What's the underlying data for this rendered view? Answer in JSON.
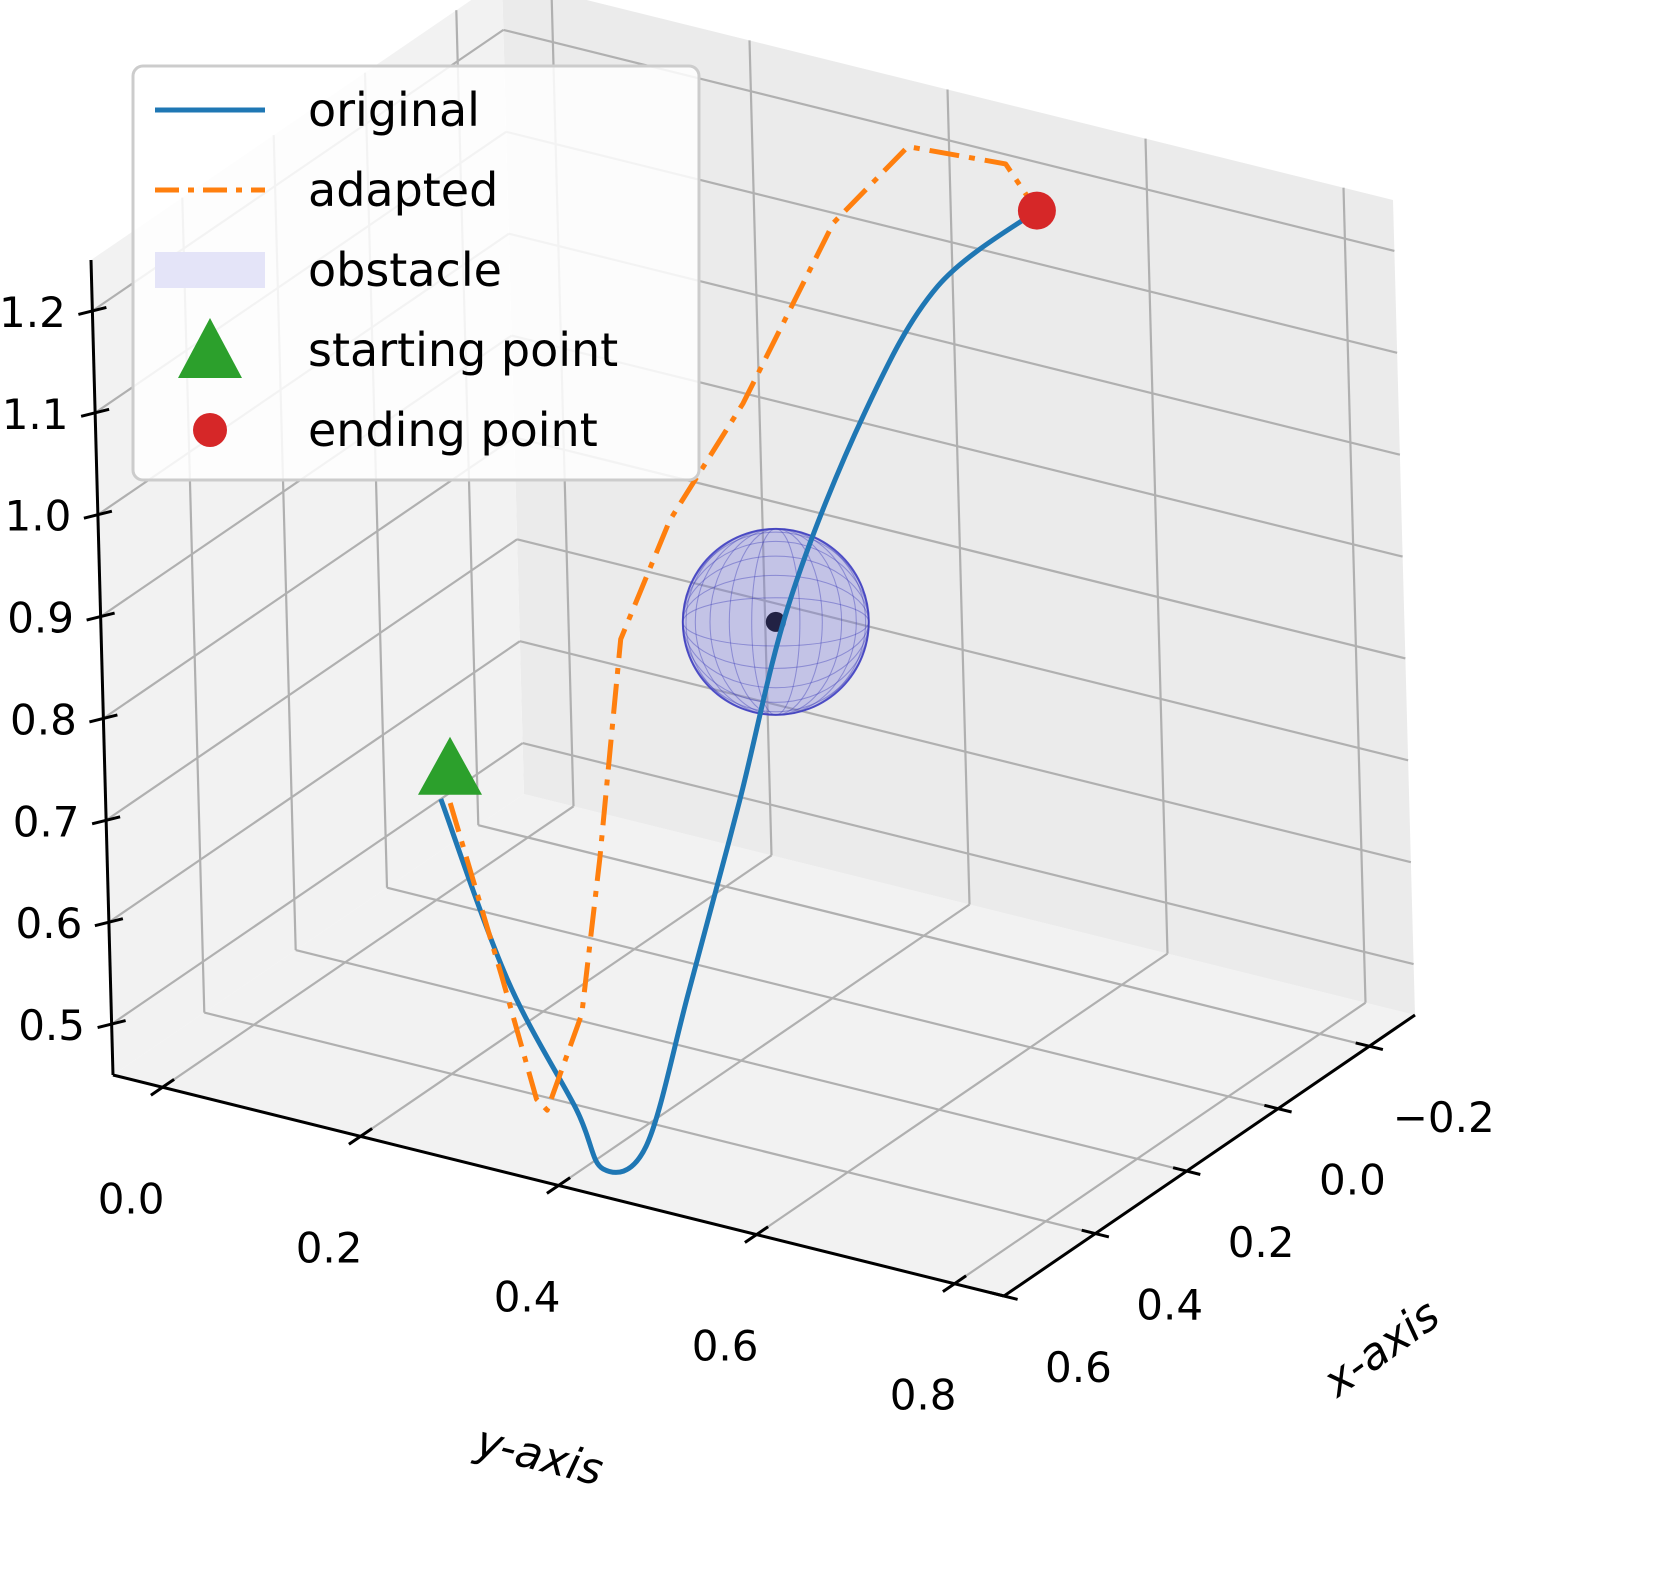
{
  "chart_data": {
    "type": "line",
    "subtype": "3d",
    "title": "",
    "xlabel": "x-axis",
    "ylabel": "y-axis",
    "zlabel": "",
    "xlim": [
      -0.3,
      0.7
    ],
    "ylim": [
      -0.05,
      0.85
    ],
    "zlim": [
      0.45,
      1.25
    ],
    "x_ticks": [
      "−0.2",
      "0.0",
      "0.2",
      "0.4",
      "0.6"
    ],
    "y_ticks": [
      "0.0",
      "0.2",
      "0.4",
      "0.6",
      "0.8"
    ],
    "z_ticks": [
      "0.5",
      "0.6",
      "0.7",
      "0.8",
      "0.9",
      "1.0",
      "1.1",
      "1.2"
    ],
    "grid": true,
    "legend_position": "top-left",
    "colors": {
      "original": "#1f77b4",
      "adapted": "#ff7f0e",
      "obstacle": "#7777dd",
      "start": "#2ca02c",
      "end": "#d62728"
    },
    "legend": [
      {
        "key": "original",
        "label": "original",
        "marker": "line"
      },
      {
        "key": "adapted",
        "label": "adapted",
        "marker": "dashdot"
      },
      {
        "key": "obstacle",
        "label": "obstacle",
        "marker": "patch"
      },
      {
        "key": "start",
        "label": "starting point",
        "marker": "triangle"
      },
      {
        "key": "end",
        "label": "ending point",
        "marker": "circle"
      }
    ],
    "series": [
      {
        "name": "original",
        "style": "solid",
        "points": [
          [
            0.45,
            0.22,
            0.74
          ],
          [
            0.55,
            0.33,
            0.62
          ],
          [
            0.6,
            0.42,
            0.53
          ],
          [
            0.63,
            0.46,
            0.49
          ],
          [
            0.6,
            0.49,
            0.51
          ],
          [
            0.52,
            0.5,
            0.64
          ],
          [
            0.4,
            0.5,
            0.79
          ],
          [
            0.28,
            0.5,
            0.95
          ],
          [
            0.15,
            0.52,
            1.1
          ],
          [
            0.05,
            0.55,
            1.2
          ],
          [
            -0.02,
            0.62,
            1.27
          ]
        ]
      },
      {
        "name": "adapted",
        "style": "dashdot",
        "points": [
          [
            0.43,
            0.22,
            0.73
          ],
          [
            0.52,
            0.31,
            0.61
          ],
          [
            0.6,
            0.38,
            0.53
          ],
          [
            0.62,
            0.4,
            0.53
          ],
          [
            0.54,
            0.4,
            0.6
          ],
          [
            0.45,
            0.38,
            0.72
          ],
          [
            0.4,
            0.37,
            0.81
          ],
          [
            0.35,
            0.36,
            0.9
          ],
          [
            0.28,
            0.38,
            1.0
          ],
          [
            0.2,
            0.42,
            1.1
          ],
          [
            0.08,
            0.46,
            1.25
          ],
          [
            0.0,
            0.5,
            1.31
          ],
          [
            -0.04,
            0.58,
            1.3
          ],
          [
            -0.02,
            0.62,
            1.27
          ]
        ]
      }
    ],
    "obstacle": {
      "center": [
        0.1,
        0.4,
        0.85
      ],
      "radius": 0.1
    },
    "start": [
      0.43,
      0.22,
      0.74
    ],
    "end": [
      -0.02,
      0.62,
      1.27
    ]
  }
}
